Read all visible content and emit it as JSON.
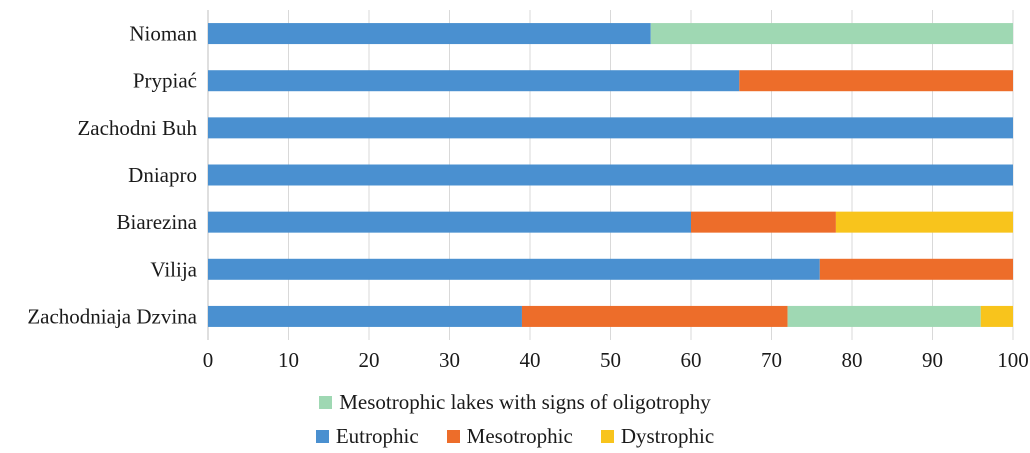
{
  "chart_data": {
    "type": "bar",
    "orientation": "horizontal",
    "stacked": true,
    "categories": [
      "Nioman",
      "Prypiać",
      "Zachodni Buh",
      "Dniapro",
      "Biarezina",
      "Vilija",
      "Zachodniaja Dzvina"
    ],
    "series": [
      {
        "name": "Eutrophic",
        "color": "#4a90d0",
        "values": [
          55,
          66,
          100,
          100,
          60,
          76,
          39
        ]
      },
      {
        "name": "Mesotrophic",
        "color": "#ed6d2a",
        "values": [
          0,
          34,
          0,
          0,
          18,
          24,
          33
        ]
      },
      {
        "name": "Dystrophic",
        "color": "#f8c41c",
        "values": [
          0,
          0,
          0,
          0,
          22,
          0,
          4
        ]
      },
      {
        "name": "Mesotrophic lakes with signs of oligotrophy",
        "color": "#9fd8b3",
        "values": [
          45,
          0,
          0,
          0,
          0,
          0,
          24
        ]
      }
    ],
    "series_order_in_bar": [
      "Eutrophic",
      "Mesotrophic",
      "Mesotrophic lakes with signs of oligotrophy",
      "Dystrophic"
    ],
    "xlim": [
      0,
      100
    ],
    "xticks": [
      "0",
      "10",
      "20",
      "30",
      "40",
      "50",
      "60",
      "70",
      "80",
      "90",
      "100"
    ],
    "grid": "vertical",
    "legend": {
      "placement": "bottom",
      "rows": [
        [
          "Mesotrophic lakes with signs of oligotrophy"
        ],
        [
          "Eutrophic",
          "Mesotrophic",
          "Dystrophic"
        ]
      ]
    }
  }
}
